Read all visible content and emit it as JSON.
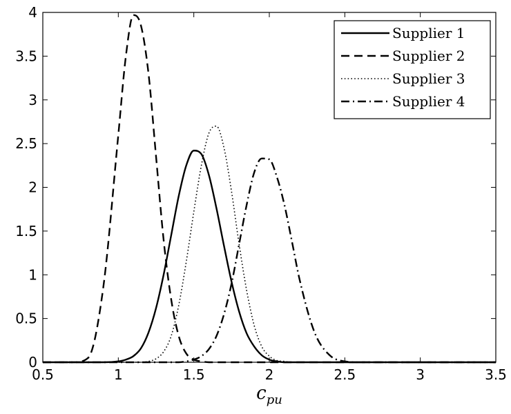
{
  "chart_data": {
    "type": "line",
    "xlabel": "c_pu",
    "xlabel_parts": {
      "base": "c",
      "subscript": "pu"
    },
    "ylabel": "",
    "title": "",
    "xlim": [
      0.5,
      3.5
    ],
    "ylim": [
      0,
      4
    ],
    "xticks": [
      0.5,
      1,
      1.5,
      2,
      2.5,
      3,
      3.5
    ],
    "xtick_labels": [
      "0.5",
      "1",
      "1.5",
      "2",
      "2.5",
      "3",
      "3.5"
    ],
    "yticks": [
      0,
      0.5,
      1,
      1.5,
      2,
      2.5,
      3,
      3.5,
      4
    ],
    "ytick_labels": [
      "0",
      "0.5",
      "1",
      "1.5",
      "2",
      "2.5",
      "3",
      "3.5",
      "4"
    ],
    "grid": false,
    "legend_position": "top-right",
    "x": [
      0.5,
      0.6,
      0.7,
      0.8,
      0.9,
      1.0,
      1.05,
      1.1,
      1.15,
      1.2,
      1.25,
      1.3,
      1.35,
      1.4,
      1.45,
      1.5,
      1.55,
      1.6,
      1.65,
      1.7,
      1.75,
      1.8,
      1.85,
      1.9,
      1.95,
      2.0,
      2.05,
      2.1,
      2.15,
      2.2,
      2.3,
      2.4,
      2.5,
      2.6,
      2.7,
      2.8,
      3.0,
      3.2,
      3.5
    ],
    "series": [
      {
        "name": "Supplier 1",
        "dash": "solid",
        "values": [
          0,
          0,
          0,
          0,
          0,
          0.01,
          0.03,
          0.07,
          0.16,
          0.34,
          0.62,
          1.0,
          1.45,
          1.9,
          2.25,
          2.42,
          2.38,
          2.14,
          1.76,
          1.33,
          0.92,
          0.58,
          0.33,
          0.18,
          0.08,
          0.03,
          0.01,
          0,
          0,
          0,
          0,
          0,
          0,
          0,
          0,
          0,
          0,
          0,
          0
        ]
      },
      {
        "name": "Supplier 2",
        "dash": "dashed",
        "values": [
          0,
          0,
          0,
          0.05,
          0.85,
          2.6,
          3.5,
          3.97,
          3.85,
          3.3,
          2.35,
          1.4,
          0.72,
          0.3,
          0.1,
          0.03,
          0.01,
          0,
          0,
          0,
          0,
          0,
          0,
          0,
          0,
          0,
          0,
          0,
          0,
          0,
          0,
          0,
          0,
          0,
          0,
          0,
          0,
          0,
          0
        ]
      },
      {
        "name": "Supplier 3",
        "dash": "dotted",
        "values": [
          0,
          0,
          0,
          0,
          0,
          0,
          0,
          0,
          0,
          0.01,
          0.04,
          0.12,
          0.3,
          0.65,
          1.15,
          1.72,
          2.25,
          2.62,
          2.7,
          2.45,
          1.95,
          1.35,
          0.82,
          0.42,
          0.18,
          0.07,
          0.02,
          0.01,
          0,
          0,
          0,
          0,
          0,
          0,
          0,
          0,
          0,
          0,
          0
        ]
      },
      {
        "name": "Supplier 4",
        "dash": "dashdot",
        "values": [
          0,
          0,
          0,
          0,
          0,
          0,
          0,
          0,
          0,
          0,
          0,
          0,
          0,
          0,
          0.01,
          0.03,
          0.07,
          0.15,
          0.3,
          0.55,
          0.9,
          1.35,
          1.8,
          2.17,
          2.33,
          2.32,
          2.12,
          1.8,
          1.38,
          0.95,
          0.34,
          0.08,
          0.01,
          0,
          0,
          0,
          0,
          0,
          0
        ]
      }
    ]
  }
}
